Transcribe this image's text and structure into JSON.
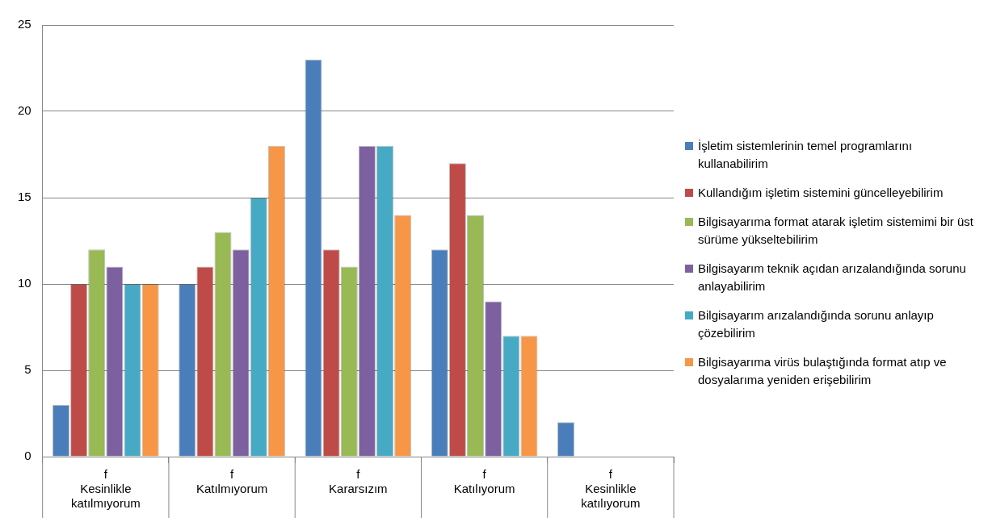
{
  "chart_data": {
    "type": "bar",
    "categories": [
      "f\nKesinlikle\nkatılmıyorum",
      "f\nKatılmıyorum",
      "f\nKararsızım",
      "f\nKatılıyorum",
      "f\nKesinlikle\nkatılıyorum"
    ],
    "series": [
      {
        "name": "İşletim sistemlerinin temel programlarını kullanabilirim",
        "color": "#4a7ebb",
        "values": [
          3,
          10,
          23,
          12,
          2
        ]
      },
      {
        "name": "Kullandığım işletim sistemini güncelleyebilirim",
        "color": "#be4b48",
        "values": [
          10,
          11,
          12,
          17,
          0
        ]
      },
      {
        "name": "Bilgisayarıma format atarak işletim sistemimi bir üst sürüme yükseltebilirim",
        "color": "#98b954",
        "values": [
          12,
          13,
          11,
          14,
          0
        ]
      },
      {
        "name": "Bilgisayarım teknik açıdan arızalandığında sorunu anlayabilirim",
        "color": "#7d60a0",
        "values": [
          11,
          12,
          18,
          9,
          0
        ]
      },
      {
        "name": "Bilgisayarım arızalandığında sorunu anlayıp çözebilirim",
        "color": "#46aac5",
        "values": [
          10,
          15,
          18,
          7,
          0
        ]
      },
      {
        "name": "Bilgisayarıma virüs bulaştığında format atıp ve dosyalarıma yeniden erişebilirim",
        "color": "#f79646",
        "values": [
          10,
          18,
          14,
          7,
          0
        ]
      }
    ],
    "ylim": [
      0,
      25
    ],
    "yticks": [
      0,
      5,
      10,
      15,
      20,
      25
    ],
    "grid": "y",
    "legend": "right"
  }
}
